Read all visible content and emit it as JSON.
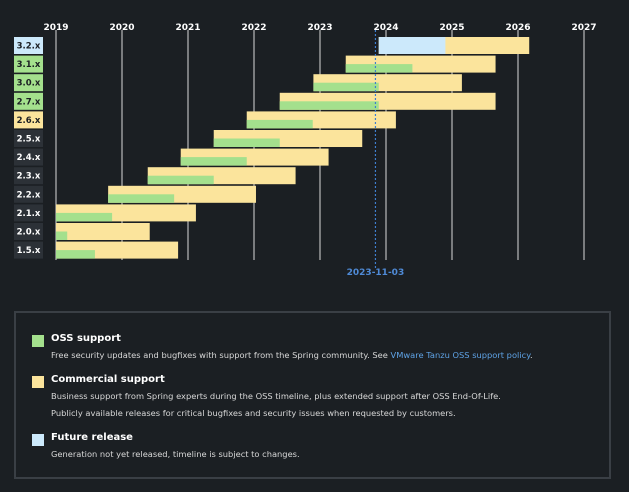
{
  "chart_data": {
    "type": "gantt",
    "title": "",
    "x_axis": {
      "years": [
        "2019",
        "2020",
        "2021",
        "2022",
        "2023",
        "2024",
        "2025",
        "2026",
        "2027"
      ]
    },
    "today": {
      "label": "2023-11-03",
      "value": 2023.84
    },
    "rows": [
      {
        "version": "3.2.x",
        "label_status": "future",
        "oss_start": 2023.89,
        "oss_end": 2024.9,
        "commercial_end": 2026.17
      },
      {
        "version": "3.1.x",
        "label_status": "oss",
        "oss_start": 2023.39,
        "oss_end": 2024.4,
        "commercial_end": 2025.66
      },
      {
        "version": "3.0.x",
        "label_status": "oss",
        "oss_start": 2022.9,
        "oss_end": 2023.89,
        "commercial_end": 2025.15
      },
      {
        "version": "2.7.x",
        "label_status": "oss",
        "oss_start": 2022.39,
        "oss_end": 2023.89,
        "commercial_end": 2025.66
      },
      {
        "version": "2.6.x",
        "label_status": "commercial",
        "oss_start": 2021.89,
        "oss_end": 2022.89,
        "commercial_end": 2024.15
      },
      {
        "version": "2.5.x",
        "label_status": "eol",
        "oss_start": 2021.39,
        "oss_end": 2022.39,
        "commercial_end": 2023.64
      },
      {
        "version": "2.4.x",
        "label_status": "eol",
        "oss_start": 2020.89,
        "oss_end": 2021.89,
        "commercial_end": 2023.13
      },
      {
        "version": "2.3.x",
        "label_status": "eol",
        "oss_start": 2020.39,
        "oss_end": 2021.39,
        "commercial_end": 2022.63
      },
      {
        "version": "2.2.x",
        "label_status": "eol",
        "oss_start": 2019.79,
        "oss_end": 2020.79,
        "commercial_end": 2022.03
      },
      {
        "version": "2.1.x",
        "label_status": "eol",
        "oss_start": 2019.0,
        "oss_end": 2019.85,
        "commercial_end": 2021.12
      },
      {
        "version": "2.0.x",
        "label_status": "eol",
        "oss_start": 2019.0,
        "oss_end": 2019.17,
        "commercial_end": 2020.42
      },
      {
        "version": "1.5.x",
        "label_status": "eol",
        "oss_start": 2019.0,
        "oss_end": 2019.59,
        "commercial_end": 2020.85
      }
    ],
    "colors": {
      "oss": "#a4e08d",
      "commercial": "#fbe49c",
      "future": "#cce9fb",
      "eol_label": "#2c3137",
      "grid": "#d9d9d9",
      "today": "#3f7fcf"
    }
  },
  "legend": {
    "oss": {
      "title": "OSS support",
      "desc_prefix": "Free security updates and bugfixes with support from the Spring community. See ",
      "link_text": "VMware Tanzu OSS support policy",
      "desc_suffix": "."
    },
    "commercial": {
      "title": "Commercial support",
      "desc_line1": "Business support from Spring experts during the OSS timeline, plus extended support after OSS End-Of-Life.",
      "desc_line2": "Publicly available releases for critical bugfixes and security issues when requested by customers."
    },
    "future": {
      "title": "Future release",
      "desc": "Generation not yet released, timeline is subject to changes."
    }
  }
}
